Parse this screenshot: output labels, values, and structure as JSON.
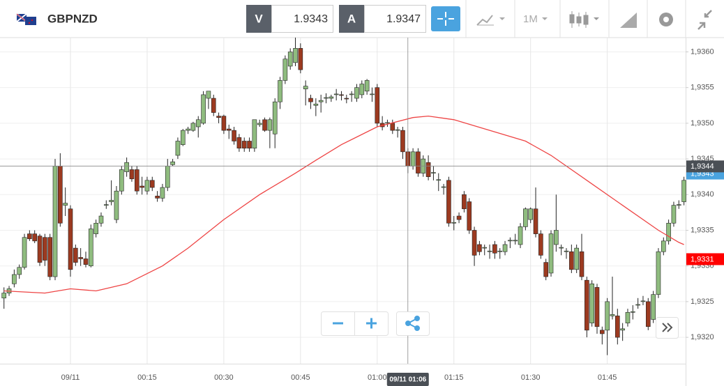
{
  "header": {
    "symbol": "GBPNZD",
    "bid_label": "V",
    "bid": 1.9343,
    "ask_label": "A",
    "ask": 1.9347,
    "timeframe": "1M"
  },
  "chart_data": {
    "type": "candlestick",
    "up_color": "#8fbc7f",
    "down_color": "#9c3a20",
    "grid": true,
    "x": [
      "23:47",
      "23:48",
      "23:49",
      "23:50",
      "23:51",
      "23:52",
      "23:53",
      "23:54",
      "23:55",
      "23:56",
      "23:57",
      "23:58",
      "23:59",
      "00:00",
      "00:01",
      "00:02",
      "00:03",
      "00:04",
      "00:05",
      "00:06",
      "00:07",
      "00:08",
      "00:09",
      "00:10",
      "00:11",
      "00:12",
      "00:13",
      "00:14",
      "00:15",
      "00:16",
      "00:17",
      "00:18",
      "00:19",
      "00:20",
      "00:21",
      "00:22",
      "00:23",
      "00:24",
      "00:25",
      "00:26",
      "00:27",
      "00:28",
      "00:29",
      "00:30",
      "00:31",
      "00:32",
      "00:33",
      "00:34",
      "00:35",
      "00:36",
      "00:37",
      "00:38",
      "00:39",
      "00:40",
      "00:41",
      "00:42",
      "00:43",
      "00:44",
      "00:45",
      "00:46",
      "00:47",
      "00:48",
      "00:49",
      "00:50",
      "00:51",
      "00:52",
      "00:53",
      "00:54",
      "00:55",
      "00:56",
      "00:57",
      "00:58",
      "00:59",
      "01:00",
      "01:01",
      "01:02",
      "01:03",
      "01:04",
      "01:05",
      "01:06",
      "01:07",
      "01:08",
      "01:09",
      "01:10",
      "01:11",
      "01:12",
      "01:13",
      "01:14",
      "01:15",
      "01:16",
      "01:17",
      "01:18",
      "01:19",
      "01:20",
      "01:21",
      "01:22",
      "01:23",
      "01:24",
      "01:25",
      "01:26",
      "01:27",
      "01:28",
      "01:29",
      "01:30",
      "01:31",
      "01:32",
      "01:33",
      "01:34",
      "01:35",
      "01:36",
      "01:37",
      "01:38",
      "01:39",
      "01:40",
      "01:41",
      "01:42",
      "01:43",
      "01:44",
      "01:45",
      "01:46",
      "01:47",
      "01:48",
      "01:49",
      "01:50",
      "01:51",
      "01:52",
      "01:53",
      "01:54",
      "01:55",
      "01:56",
      "01:57",
      "01:58",
      "01:59",
      "02:00"
    ],
    "ohlc": [
      [
        1.93255,
        1.9327,
        1.9324,
        1.93262
      ],
      [
        1.93262,
        1.93272,
        1.93258,
        1.93268
      ],
      [
        1.93275,
        1.93295,
        1.9327,
        1.93288
      ],
      [
        1.93288,
        1.93302,
        1.93282,
        1.93298
      ],
      [
        1.93298,
        1.93345,
        1.93295,
        1.9334
      ],
      [
        1.93345,
        1.9335,
        1.93335,
        1.93338
      ],
      [
        1.93345,
        1.9335,
        1.93332,
        1.93335
      ],
      [
        1.93342,
        1.93345,
        1.933,
        1.93305
      ],
      [
        1.9334,
        1.93345,
        1.933,
        1.93308
      ],
      [
        1.9334,
        1.93345,
        1.9328,
        1.93285
      ],
      [
        1.93285,
        1.9345,
        1.9328,
        1.9344
      ],
      [
        1.9344,
        1.93458,
        1.93355,
        1.9336
      ],
      [
        1.93385,
        1.9341,
        1.9337,
        1.93388
      ],
      [
        1.9338,
        1.93385,
        1.93285,
        1.93295
      ],
      [
        1.93325,
        1.9333,
        1.933,
        1.93305
      ],
      [
        1.93312,
        1.93325,
        1.933,
        1.9331
      ],
      [
        1.9331,
        1.9332,
        1.93298,
        1.93302
      ],
      [
        1.933,
        1.93358,
        1.93298,
        1.93352
      ],
      [
        1.93345,
        1.93365,
        1.9334,
        1.9336
      ],
      [
        1.9336,
        1.93375,
        1.93355,
        1.9337
      ],
      [
        1.93385,
        1.93392,
        1.9338,
        1.93386
      ],
      [
        1.9339,
        1.9342,
        1.93385,
        1.93392
      ],
      [
        1.93365,
        1.93412,
        1.9336,
        1.93405
      ],
      [
        1.93405,
        1.9344,
        1.934,
        1.93435
      ],
      [
        1.93432,
        1.93452,
        1.93425,
        1.93445
      ],
      [
        1.93435,
        1.9344,
        1.93418,
        1.93422
      ],
      [
        1.93435,
        1.9344,
        1.934,
        1.93405
      ],
      [
        1.93412,
        1.93425,
        1.934,
        1.9341
      ],
      [
        1.93405,
        1.93425,
        1.934,
        1.9342
      ],
      [
        1.9342,
        1.93425,
        1.93405,
        1.9341
      ],
      [
        1.93398,
        1.93405,
        1.9339,
        1.93395
      ],
      [
        1.93395,
        1.93415,
        1.9339,
        1.9341
      ],
      [
        1.9341,
        1.9345,
        1.93405,
        1.9344
      ],
      [
        1.93442,
        1.9345,
        1.9344,
        1.93446
      ],
      [
        1.93455,
        1.9348,
        1.9345,
        1.93475
      ],
      [
        1.9347,
        1.93492,
        1.93468,
        1.9349
      ],
      [
        1.9349,
        1.93495,
        1.93485,
        1.93492
      ],
      [
        1.9349,
        1.93502,
        1.93488,
        1.935
      ],
      [
        1.93495,
        1.9351,
        1.9348,
        1.93505
      ],
      [
        1.935,
        1.93545,
        1.93498,
        1.9354
      ],
      [
        1.93535,
        1.93545,
        1.9352,
        1.93545
      ],
      [
        1.93535,
        1.9354,
        1.9351,
        1.93515
      ],
      [
        1.9351,
        1.93515,
        1.935,
        1.93508
      ],
      [
        1.9351,
        1.93512,
        1.93485,
        1.9349
      ],
      [
        1.93492,
        1.93498,
        1.93478,
        1.9349
      ],
      [
        1.9349,
        1.93495,
        1.9347,
        1.93475
      ],
      [
        1.9348,
        1.93485,
        1.9346,
        1.93465
      ],
      [
        1.93475,
        1.9348,
        1.9346,
        1.93465
      ],
      [
        1.93475,
        1.9348,
        1.9346,
        1.93465
      ],
      [
        1.93465,
        1.93505,
        1.9346,
        1.93505
      ],
      [
        1.93498,
        1.93505,
        1.93495,
        1.935
      ],
      [
        1.93505,
        1.93508,
        1.93488,
        1.9349
      ],
      [
        1.9349,
        1.93508,
        1.93465,
        1.93505
      ],
      [
        1.93485,
        1.93535,
        1.93465,
        1.9353
      ],
      [
        1.9353,
        1.93565,
        1.9352,
        1.9356
      ],
      [
        1.9356,
        1.93595,
        1.93555,
        1.9359
      ],
      [
        1.9358,
        1.93605,
        1.93575,
        1.936
      ],
      [
        1.93585,
        1.9362,
        1.9358,
        1.93605
      ],
      [
        1.93605,
        1.93612,
        1.9357,
        1.93575
      ],
      [
        1.93548,
        1.9356,
        1.93525,
        1.93552
      ],
      [
        1.93535,
        1.9354,
        1.9352,
        1.9353
      ],
      [
        1.93525,
        1.93535,
        1.9351,
        1.93527
      ],
      [
        1.9353,
        1.9354,
        1.93515,
        1.93532
      ],
      [
        1.93535,
        1.93542,
        1.93528,
        1.93536
      ],
      [
        1.93535,
        1.9354,
        1.9353,
        1.93537
      ],
      [
        1.9354,
        1.93548,
        1.93532,
        1.93541
      ],
      [
        1.9354,
        1.93545,
        1.93532,
        1.93539
      ],
      [
        1.93535,
        1.9354,
        1.93528,
        1.93534
      ],
      [
        1.9354,
        1.93545,
        1.9353,
        1.93541
      ],
      [
        1.93535,
        1.93555,
        1.9353,
        1.9355
      ],
      [
        1.9354,
        1.9356,
        1.93535,
        1.93555
      ],
      [
        1.93545,
        1.93562,
        1.9354,
        1.9356
      ],
      [
        1.9354,
        1.9355,
        1.9353,
        1.93541
      ],
      [
        1.9355,
        1.93555,
        1.93495,
        1.935
      ],
      [
        1.935,
        1.9351,
        1.9349,
        1.93495
      ],
      [
        1.935,
        1.93505,
        1.93495,
        1.93501
      ],
      [
        1.935,
        1.93505,
        1.93485,
        1.9349
      ],
      [
        1.9349,
        1.93495,
        1.9348,
        1.93491
      ],
      [
        1.9349,
        1.93495,
        1.9345,
        1.9346
      ],
      [
        1.9346,
        1.93465,
        1.9343,
        1.9344
      ],
      [
        1.9344,
        1.93465,
        1.93435,
        1.9346
      ],
      [
        1.9346,
        1.93465,
        1.93425,
        1.9343
      ],
      [
        1.9343,
        1.93455,
        1.93425,
        1.9345
      ],
      [
        1.93445,
        1.93455,
        1.9342,
        1.93425
      ],
      [
        1.9343,
        1.9344,
        1.9342,
        1.93431
      ],
      [
        1.9342,
        1.9343,
        1.93405,
        1.93421
      ],
      [
        1.9341,
        1.93415,
        1.934,
        1.93411
      ],
      [
        1.9342,
        1.93425,
        1.93355,
        1.9336
      ],
      [
        1.9336,
        1.9337,
        1.9335,
        1.93361
      ],
      [
        1.9337,
        1.93375,
        1.9336,
        1.93365
      ],
      [
        1.934,
        1.93405,
        1.93375,
        1.9338
      ],
      [
        1.9339,
        1.93395,
        1.93345,
        1.9335
      ],
      [
        1.9335,
        1.93355,
        1.933,
        1.93315
      ],
      [
        1.9333,
        1.93335,
        1.93315,
        1.9332
      ],
      [
        1.93325,
        1.9333,
        1.93315,
        1.93326
      ],
      [
        1.9332,
        1.9333,
        1.9331,
        1.93321
      ],
      [
        1.9333,
        1.93335,
        1.9331,
        1.93318
      ],
      [
        1.9332,
        1.93325,
        1.9331,
        1.93321
      ],
      [
        1.9332,
        1.93335,
        1.93315,
        1.9333
      ],
      [
        1.93335,
        1.9334,
        1.93325,
        1.93336
      ],
      [
        1.93335,
        1.93345,
        1.9333,
        1.93336
      ],
      [
        1.9333,
        1.9336,
        1.93325,
        1.93355
      ],
      [
        1.93355,
        1.93382,
        1.9335,
        1.9338
      ],
      [
        1.93365,
        1.93382,
        1.9336,
        1.9338
      ],
      [
        1.9338,
        1.9341,
        1.9334,
        1.93345
      ],
      [
        1.93345,
        1.9335,
        1.9331,
        1.93315
      ],
      [
        1.93305,
        1.9331,
        1.9328,
        1.93285
      ],
      [
        1.9329,
        1.9335,
        1.93285,
        1.93345
      ],
      [
        1.9333,
        1.934,
        1.9332,
        1.9335
      ],
      [
        1.93325,
        1.9333,
        1.93315,
        1.93326
      ],
      [
        1.9332,
        1.93325,
        1.9331,
        1.93321
      ],
      [
        1.9332,
        1.9333,
        1.9329,
        1.93295
      ],
      [
        1.93295,
        1.9333,
        1.9329,
        1.93325
      ],
      [
        1.9332,
        1.93345,
        1.9328,
        1.93285
      ],
      [
        1.9328,
        1.93285,
        1.932,
        1.9321
      ],
      [
        1.9322,
        1.9328,
        1.93215,
        1.93275
      ],
      [
        1.9327,
        1.93275,
        1.93205,
        1.93215
      ],
      [
        1.9321,
        1.93215,
        1.9319,
        1.93205
      ],
      [
        1.9321,
        1.93255,
        1.93175,
        1.9325
      ],
      [
        1.9323,
        1.93285,
        1.93225,
        1.93232
      ],
      [
        1.9323,
        1.9324,
        1.9319,
        1.932
      ],
      [
        1.9321,
        1.9322,
        1.93195,
        1.93212
      ],
      [
        1.9322,
        1.9324,
        1.93215,
        1.93235
      ],
      [
        1.93235,
        1.93245,
        1.93225,
        1.93236
      ],
      [
        1.93245,
        1.93255,
        1.9324,
        1.93246
      ],
      [
        1.9325,
        1.93258,
        1.93245,
        1.93251
      ],
      [
        1.9325,
        1.93255,
        1.9321,
        1.93215
      ],
      [
        1.93225,
        1.93265,
        1.9322,
        1.9326
      ],
      [
        1.9326,
        1.93325,
        1.93255,
        1.9332
      ],
      [
        1.9332,
        1.9334,
        1.93315,
        1.93335
      ],
      [
        1.93335,
        1.93365,
        1.9333,
        1.9336
      ],
      [
        1.9336,
        1.9339,
        1.93355,
        1.93385
      ],
      [
        1.93385,
        1.93392,
        1.9338,
        1.93386
      ],
      [
        1.9339,
        1.93425,
        1.93385,
        1.9342
      ]
    ],
    "overlay": {
      "color": "#ee4444",
      "x": [
        "23:47",
        "23:55",
        "00:00",
        "00:05",
        "00:11",
        "00:18",
        "00:23",
        "00:30",
        "00:37",
        "00:44",
        "00:48",
        "00:53",
        "01:00",
        "01:07",
        "01:10",
        "01:15",
        "01:22",
        "01:29",
        "01:34",
        "01:41",
        "01:48",
        "01:55",
        "01:59",
        "02:00"
      ],
      "values": [
        1.93265,
        1.93262,
        1.93268,
        1.93265,
        1.93275,
        1.933,
        1.93325,
        1.93365,
        1.934,
        1.9343,
        1.93448,
        1.9347,
        1.93495,
        1.93508,
        1.9351,
        1.93505,
        1.9349,
        1.93475,
        1.93455,
        1.9342,
        1.93385,
        1.9335,
        1.93333,
        1.9333
      ]
    },
    "ylim": [
      1.93163,
      1.9362
    ],
    "yticks": [
      {
        "value": 1.932,
        "label": "1,9320"
      },
      {
        "value": 1.9325,
        "label": "1,9325"
      },
      {
        "value": 1.933,
        "label": "1,9330"
      },
      {
        "value": 1.9335,
        "label": "1,9335"
      },
      {
        "value": 1.934,
        "label": "1,9340"
      },
      {
        "value": 1.9345,
        "label": "1,9345"
      },
      {
        "value": 1.935,
        "label": "1,9350"
      },
      {
        "value": 1.9355,
        "label": "1,9355"
      },
      {
        "value": 1.936,
        "label": "1,9360"
      }
    ],
    "xticks": [
      {
        "value": "00:00",
        "label": "09/11"
      },
      "00:15",
      "00:30",
      "00:45",
      "01:00",
      "01:15",
      "01:30",
      "01:45"
    ],
    "price_markers": [
      {
        "value": 1.9343,
        "label": "1,9343",
        "color": "#4aa3df"
      },
      {
        "value": 1.9344,
        "label": "1,9344",
        "color": "#4a4f55"
      },
      {
        "value": 1.9331,
        "label": "1,9331",
        "color": "#ff0000"
      }
    ],
    "crosshair": {
      "x": "01:06",
      "y": 1.9344,
      "label": "09/11 01:06"
    }
  }
}
